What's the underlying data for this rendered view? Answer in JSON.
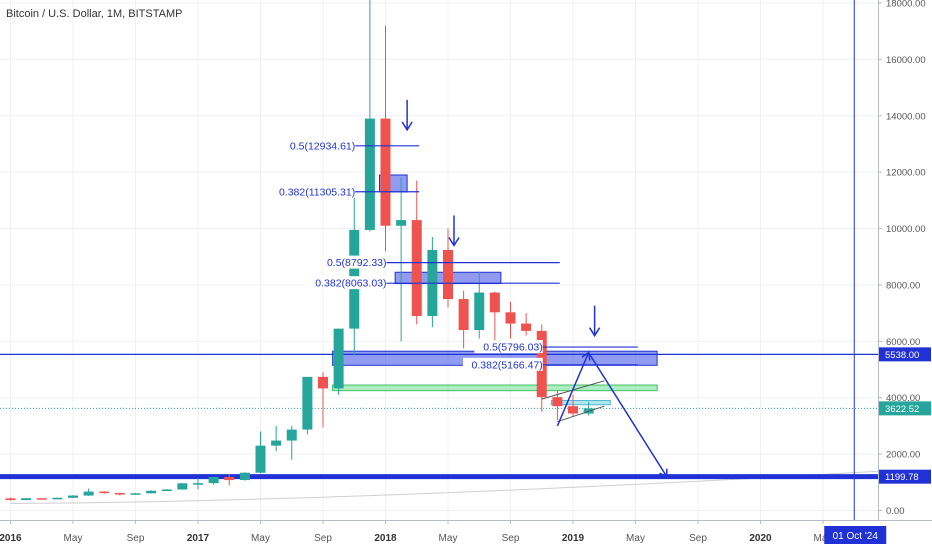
{
  "header": {
    "title": "Bitcoin / U.S. Dollar, 1M, BITSTAMP"
  },
  "chart_data": {
    "type": "candlestick",
    "title": "Bitcoin / U.S. Dollar, 1M, BITSTAMP",
    "xlabel": "",
    "ylabel": "",
    "ylim": [
      -500,
      18000
    ],
    "y_ticks": [
      {
        "v": 18000,
        "label": "18000.00"
      },
      {
        "v": 16000,
        "label": "16000.00"
      },
      {
        "v": 14000,
        "label": "14000.00"
      },
      {
        "v": 12000,
        "label": "12000.00"
      },
      {
        "v": 10000,
        "label": "10000.00"
      },
      {
        "v": 8000,
        "label": "8000.00"
      },
      {
        "v": 6000,
        "label": "6000.00"
      },
      {
        "v": 4000,
        "label": "4000.00"
      },
      {
        "v": 2000,
        "label": "2000.00"
      },
      {
        "v": 0,
        "label": "0.00"
      }
    ],
    "x_ticks": [
      {
        "m": "2016-01",
        "label": "2016",
        "bold": true
      },
      {
        "m": "2016-05",
        "label": "May",
        "bold": false
      },
      {
        "m": "2016-09",
        "label": "Sep",
        "bold": false
      },
      {
        "m": "2017-01",
        "label": "2017",
        "bold": true
      },
      {
        "m": "2017-05",
        "label": "May",
        "bold": false
      },
      {
        "m": "2017-09",
        "label": "Sep",
        "bold": false
      },
      {
        "m": "2018-01",
        "label": "2018",
        "bold": true
      },
      {
        "m": "2018-05",
        "label": "May",
        "bold": false
      },
      {
        "m": "2018-09",
        "label": "Sep",
        "bold": false
      },
      {
        "m": "2019-01",
        "label": "2019",
        "bold": true
      },
      {
        "m": "2019-05",
        "label": "May",
        "bold": false
      },
      {
        "m": "2019-09",
        "label": "Sep",
        "bold": false
      },
      {
        "m": "2020-01",
        "label": "2020",
        "bold": true
      },
      {
        "m": "2020-05",
        "label": "May",
        "bold": false
      }
    ],
    "colors": {
      "up": "#26a69a",
      "down": "#ef5350",
      "drawing": "#2032d6",
      "price_line": "#26a69a"
    },
    "candles": [
      {
        "m": "2016-01",
        "o": 430,
        "h": 460,
        "l": 360,
        "c": 370
      },
      {
        "m": "2016-02",
        "o": 370,
        "h": 440,
        "l": 365,
        "c": 435
      },
      {
        "m": "2016-03",
        "o": 435,
        "h": 440,
        "l": 400,
        "c": 415
      },
      {
        "m": "2016-04",
        "o": 415,
        "h": 465,
        "l": 410,
        "c": 450
      },
      {
        "m": "2016-05",
        "o": 450,
        "h": 550,
        "l": 440,
        "c": 530
      },
      {
        "m": "2016-06",
        "o": 530,
        "h": 780,
        "l": 520,
        "c": 670
      },
      {
        "m": "2016-07",
        "o": 670,
        "h": 690,
        "l": 600,
        "c": 620
      },
      {
        "m": "2016-08",
        "o": 620,
        "h": 630,
        "l": 530,
        "c": 575
      },
      {
        "m": "2016-09",
        "o": 575,
        "h": 620,
        "l": 570,
        "c": 610
      },
      {
        "m": "2016-10",
        "o": 610,
        "h": 720,
        "l": 600,
        "c": 700
      },
      {
        "m": "2016-11",
        "o": 700,
        "h": 760,
        "l": 690,
        "c": 745
      },
      {
        "m": "2016-12",
        "o": 745,
        "h": 980,
        "l": 740,
        "c": 965
      },
      {
        "m": "2017-01",
        "o": 965,
        "h": 1150,
        "l": 750,
        "c": 970
      },
      {
        "m": "2017-02",
        "o": 970,
        "h": 1200,
        "l": 920,
        "c": 1190
      },
      {
        "m": "2017-03",
        "o": 1190,
        "h": 1300,
        "l": 890,
        "c": 1080
      },
      {
        "m": "2017-04",
        "o": 1080,
        "h": 1350,
        "l": 1060,
        "c": 1340
      },
      {
        "m": "2017-05",
        "o": 1340,
        "h": 2800,
        "l": 1320,
        "c": 2300
      },
      {
        "m": "2017-06",
        "o": 2300,
        "h": 3000,
        "l": 2100,
        "c": 2480
      },
      {
        "m": "2017-07",
        "o": 2480,
        "h": 3000,
        "l": 1800,
        "c": 2870
      },
      {
        "m": "2017-08",
        "o": 2870,
        "h": 4700,
        "l": 2700,
        "c": 4740
      },
      {
        "m": "2017-09",
        "o": 4740,
        "h": 4900,
        "l": 2950,
        "c": 4330
      },
      {
        "m": "2017-10",
        "o": 4330,
        "h": 6450,
        "l": 4100,
        "c": 6450
      },
      {
        "m": "2017-11",
        "o": 6450,
        "h": 11400,
        "l": 5500,
        "c": 9950
      },
      {
        "m": "2017-12",
        "o": 9950,
        "h": 19700,
        "l": 9900,
        "c": 13900
      },
      {
        "m": "2018-01",
        "o": 13900,
        "h": 17200,
        "l": 9200,
        "c": 10100
      },
      {
        "m": "2018-02",
        "o": 10100,
        "h": 11800,
        "l": 6000,
        "c": 10300
      },
      {
        "m": "2018-03",
        "o": 10300,
        "h": 11700,
        "l": 6600,
        "c": 6900
      },
      {
        "m": "2018-04",
        "o": 6900,
        "h": 9700,
        "l": 6500,
        "c": 9240
      },
      {
        "m": "2018-05",
        "o": 9240,
        "h": 10000,
        "l": 7200,
        "c": 7500
      },
      {
        "m": "2018-06",
        "o": 7500,
        "h": 7800,
        "l": 5750,
        "c": 6400
      },
      {
        "m": "2018-07",
        "o": 6400,
        "h": 8480,
        "l": 6100,
        "c": 7730
      },
      {
        "m": "2018-08",
        "o": 7730,
        "h": 7760,
        "l": 5880,
        "c": 7030
      },
      {
        "m": "2018-09",
        "o": 7030,
        "h": 7400,
        "l": 6100,
        "c": 6630
      },
      {
        "m": "2018-10",
        "o": 6630,
        "h": 7000,
        "l": 6200,
        "c": 6370
      },
      {
        "m": "2018-11",
        "o": 6370,
        "h": 6600,
        "l": 3500,
        "c": 4020
      },
      {
        "m": "2018-12",
        "o": 4020,
        "h": 4250,
        "l": 3200,
        "c": 3700
      },
      {
        "m": "2019-01",
        "o": 3700,
        "h": 4100,
        "l": 3350,
        "c": 3440
      },
      {
        "m": "2019-02",
        "o": 3440,
        "h": 3850,
        "l": 3370,
        "c": 3622.52
      }
    ],
    "fib_labels": [
      {
        "text": "0.5(12934.61)",
        "value": 12934.61,
        "x0m": "2017-11",
        "x1m": "2018-02"
      },
      {
        "text": "0.382(11305.31)",
        "value": 11305.31,
        "x0m": "2017-11",
        "x1m": "2018-02"
      },
      {
        "text": "0.5(8792.33)",
        "value": 8792.33,
        "x0m": "2018-01",
        "x1m": "2018-11"
      },
      {
        "text": "0.382(8063.03)",
        "value": 8063.03,
        "x0m": "2018-01",
        "x1m": "2018-11"
      },
      {
        "text": "0.5(5796.03)",
        "value": 5796.03,
        "x0m": "2018-11",
        "x1m": "2019-04"
      },
      {
        "text": "0.382(5166.47)",
        "value": 5166.47,
        "x0m": "2018-11",
        "x1m": "2019-04"
      }
    ],
    "zones": [
      {
        "y0": 11300,
        "y1": 11900,
        "x0m": "2018-01",
        "x1m": "2018-02",
        "kind": "blue"
      },
      {
        "y0": 8050,
        "y1": 8450,
        "x0m": "2018-02",
        "x1m": "2018-08",
        "kind": "blue"
      },
      {
        "y0": 5150,
        "y1": 5650,
        "x0m": "2017-10",
        "x1m": "2019-06",
        "kind": "blue"
      },
      {
        "y0": 4250,
        "y1": 4450,
        "x0m": "2017-10",
        "x1m": "2019-06",
        "kind": "green"
      },
      {
        "y0": 3750,
        "y1": 3900,
        "x0m": "2018-12",
        "x1m": "2019-03",
        "kind": "cyan"
      }
    ],
    "down_arrows_at": [
      {
        "m": "2018-02",
        "y": 13500
      },
      {
        "m": "2018-05",
        "y": 9400
      },
      {
        "m": "2019-02",
        "y": 6200
      }
    ],
    "horizontal_levels": [
      {
        "value": 5538,
        "label": "5538.00"
      },
      {
        "value": 1199.78,
        "label": "1199.78"
      }
    ],
    "current_price": {
      "value": 3622.52,
      "label": "3622.52"
    },
    "projection": [
      {
        "m": "2018-12",
        "y": 3000
      },
      {
        "m": "2019-02",
        "y": 5600
      },
      {
        "m": "2019-07",
        "y": 1199.78
      }
    ],
    "triangle_lines": [
      [
        {
          "m": "2018-11",
          "y": 3950
        },
        {
          "m": "2019-03",
          "y": 4600
        }
      ],
      [
        {
          "m": "2018-12",
          "y": 3150
        },
        {
          "m": "2019-03",
          "y": 3700
        }
      ]
    ],
    "vline": {
      "m": "2020-07"
    },
    "cursor_date": "01 Oct '24"
  }
}
